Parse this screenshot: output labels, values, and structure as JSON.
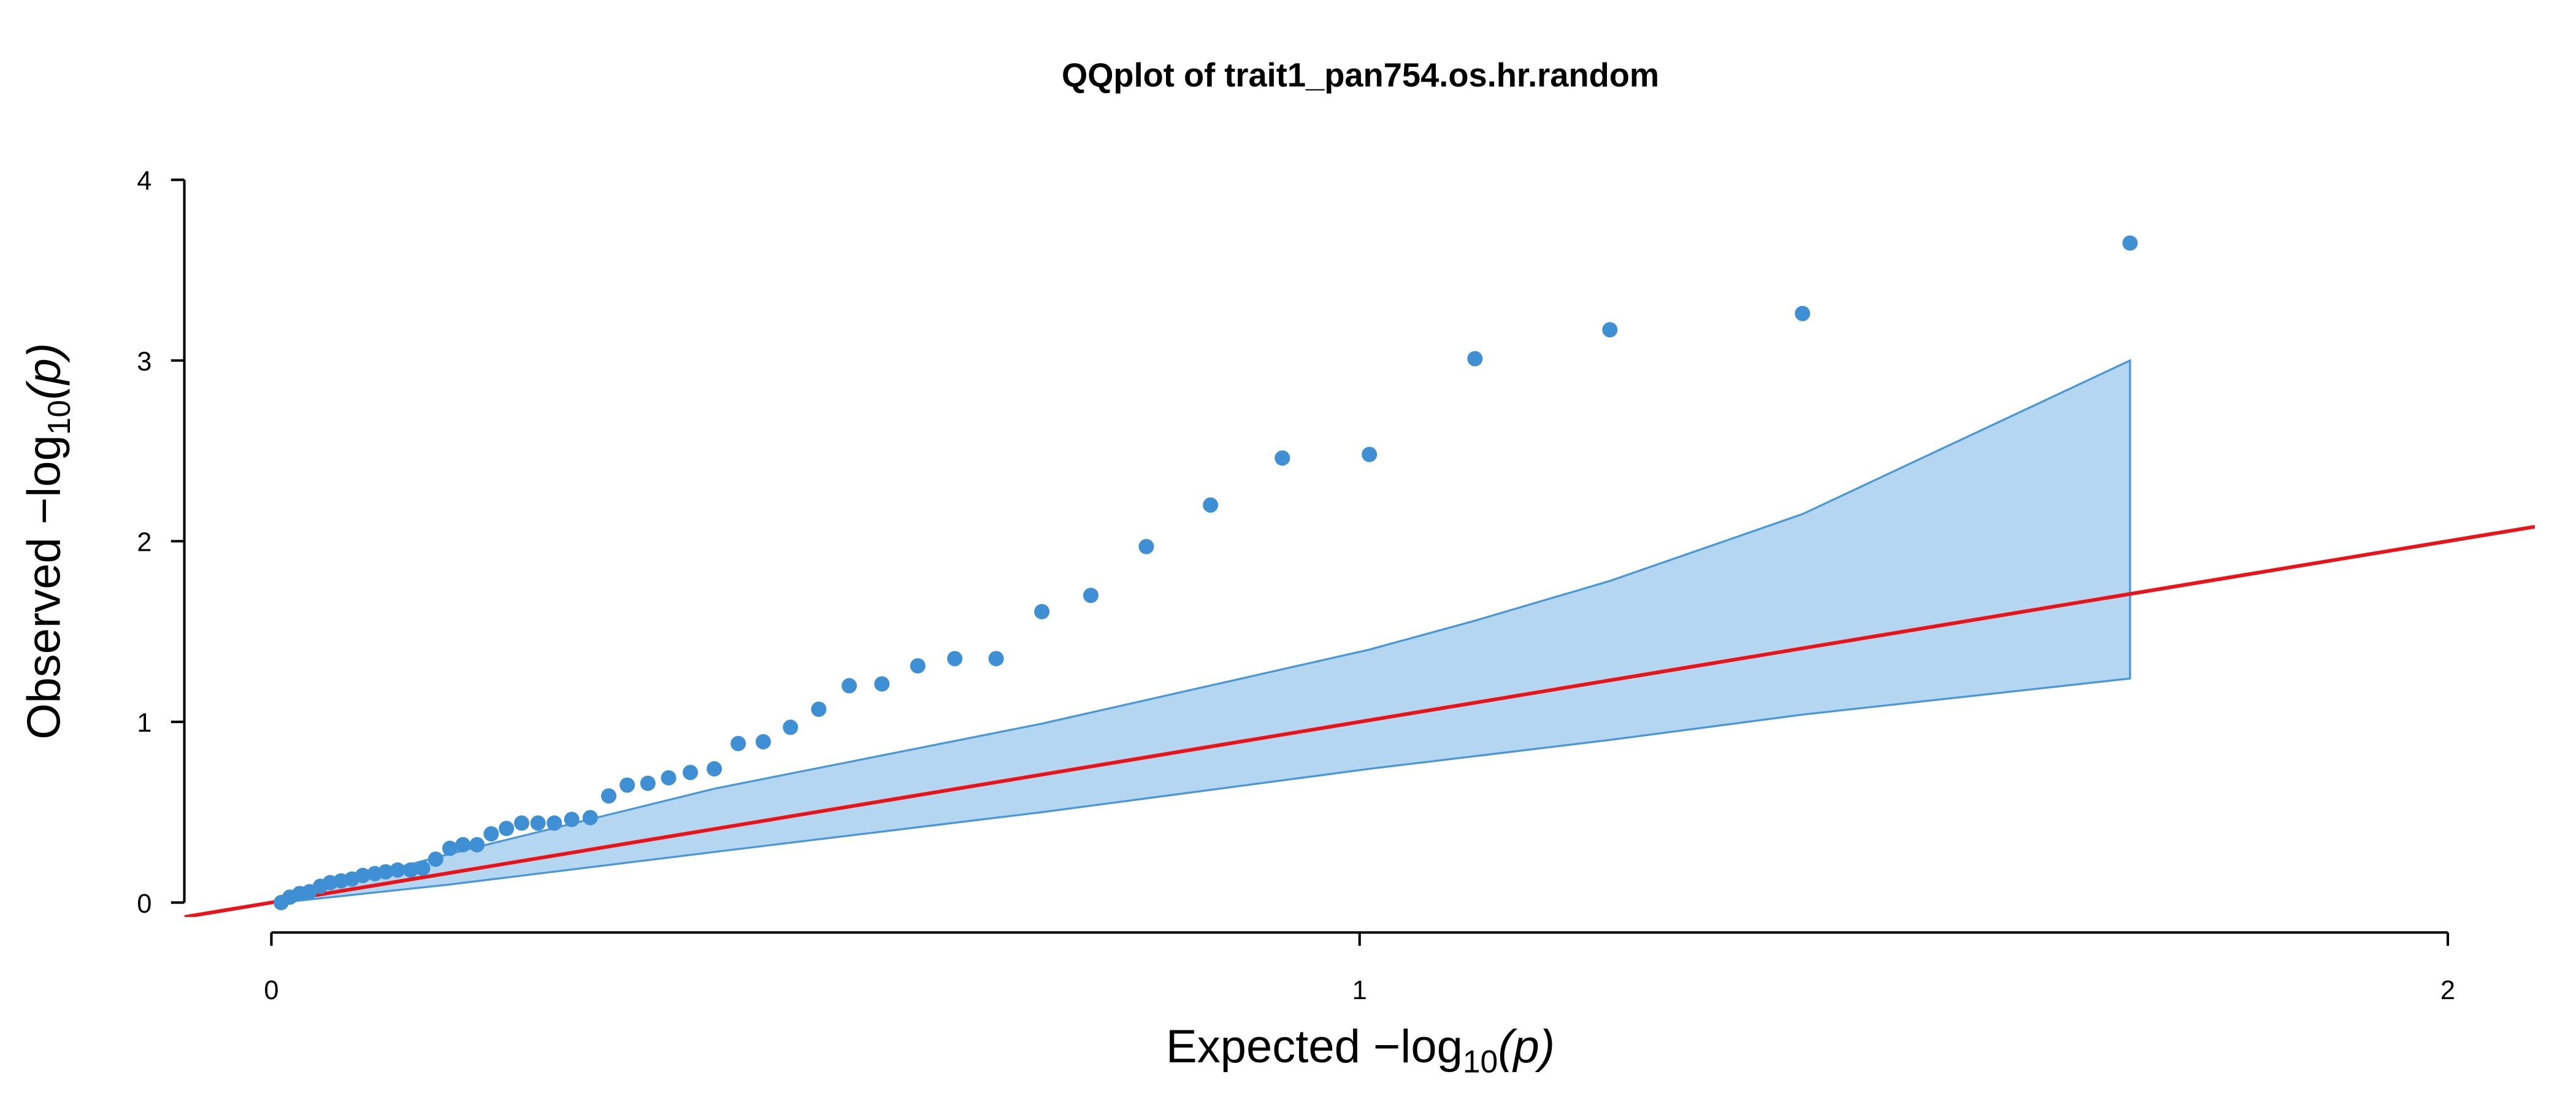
{
  "chart_data": {
    "type": "qq",
    "title": "QQplot of trait1_pan754.os.hr.random",
    "x_label": {
      "text": "Expected  −log",
      "sub": "10",
      "arg": "(p)"
    },
    "y_label": {
      "text": "Observed  −log",
      "sub": "10",
      "arg": "(p)"
    },
    "x": [
      0.009,
      0.017,
      0.026,
      0.035,
      0.045,
      0.054,
      0.064,
      0.074,
      0.084,
      0.095,
      0.105,
      0.116,
      0.128,
      0.139,
      0.151,
      0.164,
      0.176,
      0.189,
      0.202,
      0.216,
      0.23,
      0.245,
      0.26,
      0.276,
      0.293,
      0.31,
      0.327,
      0.346,
      0.365,
      0.385,
      0.407,
      0.429,
      0.452,
      0.477,
      0.503,
      0.531,
      0.561,
      0.594,
      0.628,
      0.666,
      0.708,
      0.753,
      0.804,
      0.863,
      0.929,
      1.009,
      1.106,
      1.23,
      1.407,
      1.708
    ],
    "y": [
      0.0,
      0.03,
      0.05,
      0.06,
      0.09,
      0.11,
      0.12,
      0.13,
      0.15,
      0.16,
      0.17,
      0.18,
      0.18,
      0.19,
      0.24,
      0.3,
      0.32,
      0.32,
      0.38,
      0.41,
      0.44,
      0.44,
      0.44,
      0.46,
      0.47,
      0.59,
      0.65,
      0.66,
      0.69,
      0.72,
      0.74,
      0.88,
      0.89,
      0.97,
      1.07,
      1.2,
      1.21,
      1.31,
      1.35,
      1.35,
      1.61,
      1.7,
      1.97,
      2.2,
      2.46,
      2.48,
      3.01,
      3.17,
      3.26,
      3.65
    ],
    "point_color": "#3f8fd4",
    "band": {
      "x": [
        0.009,
        0.164,
        0.407,
        0.708,
        1.009,
        1.106,
        1.23,
        1.407,
        1.708
      ],
      "upper": [
        0.02,
        0.27,
        0.63,
        0.99,
        1.4,
        1.56,
        1.78,
        2.15,
        3.0
      ],
      "lower": [
        0.0,
        0.1,
        0.28,
        0.5,
        0.74,
        0.81,
        0.9,
        1.04,
        1.24
      ],
      "fill": "#b5d6f1",
      "stroke": "#4a97d6"
    },
    "reference_line": {
      "slope": 1,
      "intercept": 0,
      "color": "#e8141a"
    },
    "xlim": [
      -0.08,
      2.08
    ],
    "ylim": [
      -0.08,
      4.08
    ],
    "xticks": [
      0,
      1,
      2
    ],
    "yticks": [
      0,
      1,
      2,
      3,
      4
    ]
  }
}
